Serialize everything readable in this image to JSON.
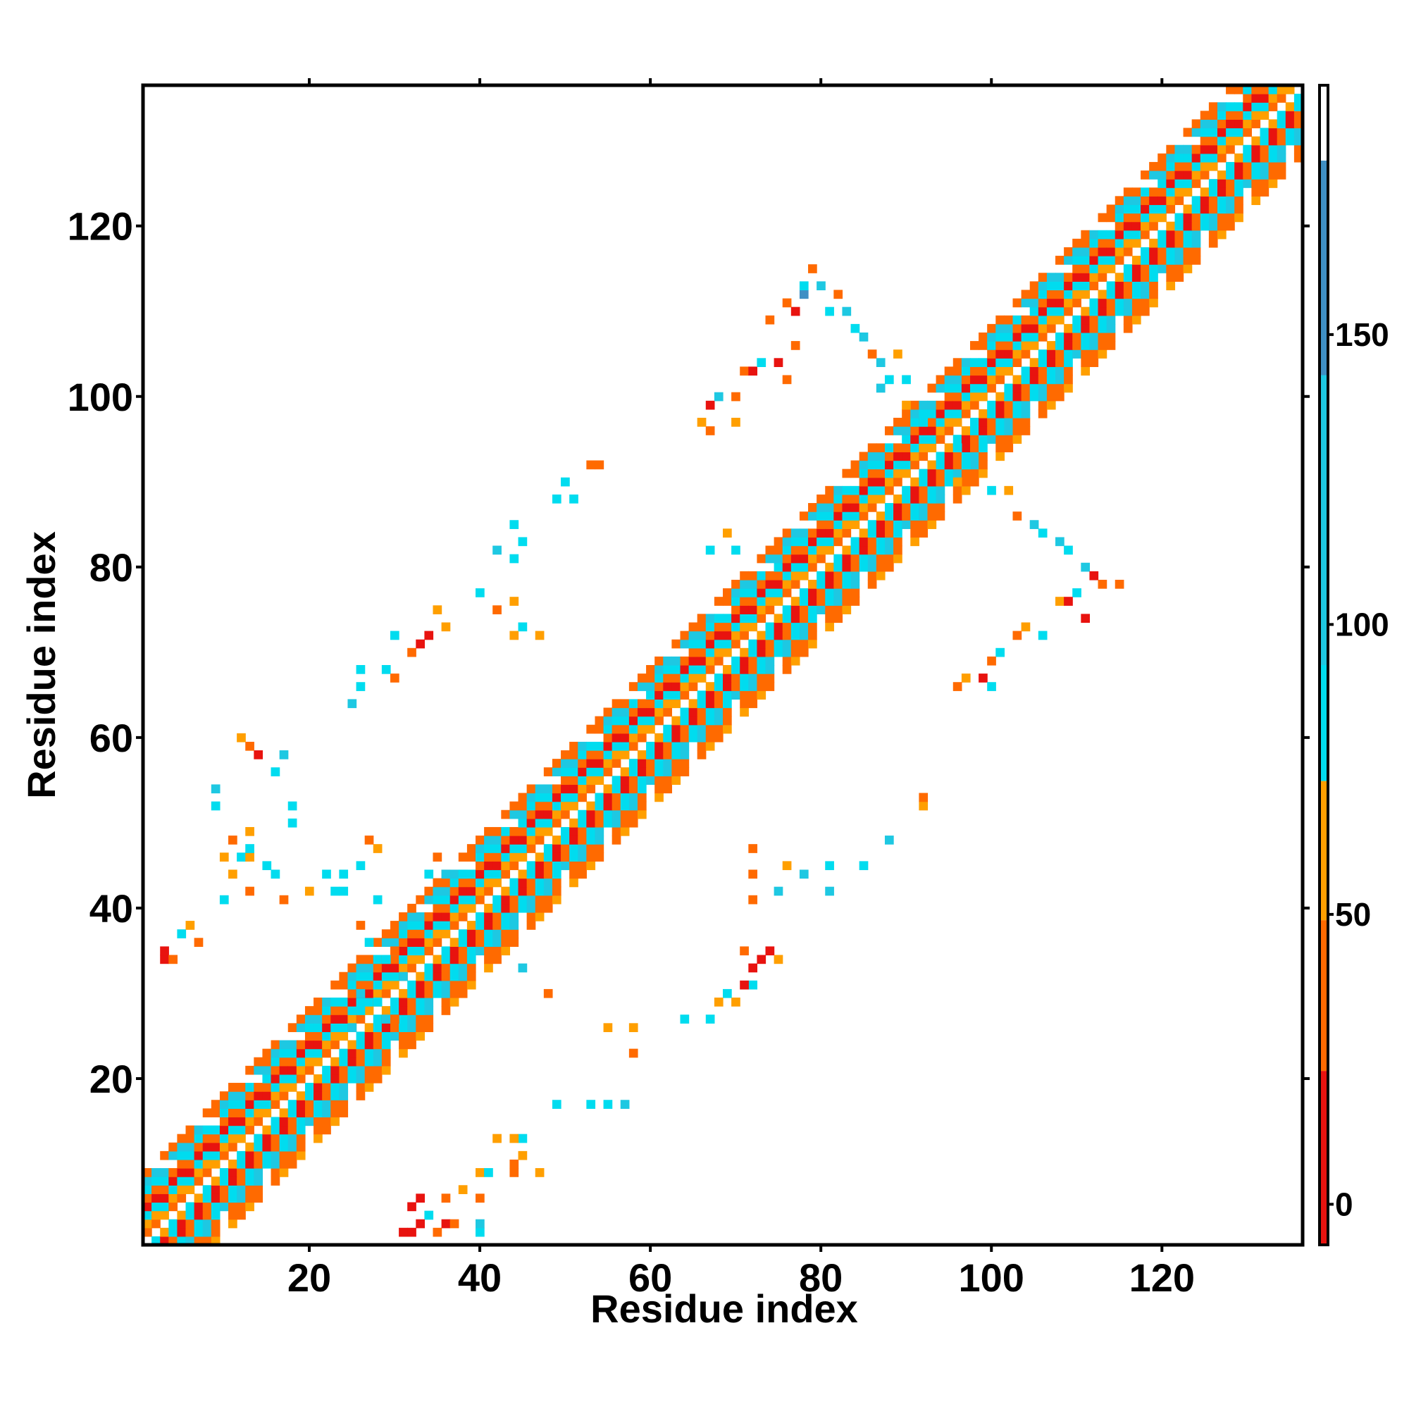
{
  "chart_data": {
    "type": "heatmap",
    "title": "",
    "xlabel": "Residue index",
    "ylabel": "Residue index",
    "xlim": [
      1,
      136
    ],
    "ylim": [
      1,
      136
    ],
    "xticks": [
      20,
      40,
      60,
      80,
      100,
      120
    ],
    "yticks": [
      20,
      40,
      60,
      80,
      100,
      120
    ],
    "tick_labels": {
      "x": [
        "20",
        "40",
        "60",
        "80",
        "100",
        "120"
      ],
      "y": [
        "20",
        "40",
        "60",
        "80",
        "100",
        "120"
      ]
    },
    "colorbar": {
      "range": [
        -7,
        193
      ],
      "ticks": [
        0,
        50,
        100,
        150
      ],
      "tick_labels": [
        "0",
        "50",
        "100",
        "150"
      ],
      "bins": [
        {
          "from": -7,
          "to": 23,
          "color": "#e8130f"
        },
        {
          "from": 23,
          "to": 49,
          "color": "#ff6a00"
        },
        {
          "from": 49,
          "to": 73,
          "color": "#ff9f00"
        },
        {
          "from": 73,
          "to": 93,
          "color": "#00dcef"
        },
        {
          "from": 93,
          "to": 143,
          "color": "#1ec8e2"
        },
        {
          "from": 143,
          "to": 180,
          "color": "#3f8fc4"
        },
        {
          "from": 180,
          "to": 193,
          "color": "#ffffff"
        }
      ]
    },
    "palette": {
      "red": "#e8130f",
      "orange": "#ff6a00",
      "amber": "#ff9f00",
      "cyan": "#00dcef",
      "teal": "#1ec8e2",
      "blue": "#3f8fc4"
    },
    "diagonal_band": {
      "residue_range": [
        1,
        136
      ],
      "half_width": 8,
      "pattern": [
        "orange",
        "amber",
        "cyan",
        "red",
        "orange",
        "cyan",
        "teal",
        "orange"
      ]
    },
    "off_diagonal_cells": [
      [
        31,
        2,
        "red"
      ],
      [
        32,
        2,
        "red"
      ],
      [
        35,
        2,
        "orange"
      ],
      [
        36,
        3,
        "red"
      ],
      [
        37,
        3,
        "orange"
      ],
      [
        40,
        2,
        "cyan"
      ],
      [
        40,
        3,
        "teal"
      ],
      [
        34,
        4,
        "cyan"
      ],
      [
        33,
        3,
        "red"
      ],
      [
        32,
        5,
        "red"
      ],
      [
        33,
        6,
        "red"
      ],
      [
        36,
        6,
        "orange"
      ],
      [
        40,
        6,
        "orange"
      ],
      [
        38,
        7,
        "amber"
      ],
      [
        29,
        27,
        "teal"
      ],
      [
        30,
        27,
        "orange"
      ],
      [
        28,
        29,
        "cyan"
      ],
      [
        26,
        28,
        "cyan"
      ],
      [
        25,
        26,
        "teal"
      ],
      [
        26,
        30,
        "teal"
      ],
      [
        28,
        31,
        "cyan"
      ],
      [
        36,
        44,
        "teal"
      ],
      [
        35,
        46,
        "orange"
      ],
      [
        34,
        44,
        "cyan"
      ],
      [
        32,
        40,
        "orange"
      ],
      [
        38,
        44,
        "cyan"
      ],
      [
        13,
        42,
        "orange"
      ],
      [
        11,
        44,
        "amber"
      ],
      [
        10,
        41,
        "cyan"
      ],
      [
        10,
        46,
        "amber"
      ],
      [
        12,
        46,
        "cyan"
      ],
      [
        13,
        46,
        "amber"
      ],
      [
        3,
        34,
        "red"
      ],
      [
        3,
        35,
        "red"
      ],
      [
        4,
        34,
        "orange"
      ],
      [
        5,
        37,
        "cyan"
      ],
      [
        7,
        36,
        "orange"
      ],
      [
        6,
        38,
        "amber"
      ],
      [
        31,
        32,
        "teal"
      ],
      [
        30,
        35,
        "orange"
      ],
      [
        29,
        34,
        "cyan"
      ],
      [
        27,
        36,
        "cyan"
      ],
      [
        26,
        38,
        "orange"
      ],
      [
        23,
        42,
        "cyan"
      ],
      [
        24,
        42,
        "cyan"
      ],
      [
        22,
        44,
        "cyan"
      ],
      [
        20,
        42,
        "amber"
      ],
      [
        17,
        41,
        "orange"
      ],
      [
        16,
        44,
        "cyan"
      ],
      [
        15,
        45,
        "cyan"
      ],
      [
        13,
        47,
        "cyan"
      ],
      [
        13,
        49,
        "amber"
      ],
      [
        11,
        48,
        "orange"
      ],
      [
        9,
        52,
        "cyan"
      ],
      [
        9,
        54,
        "teal"
      ],
      [
        14,
        58,
        "red"
      ],
      [
        13,
        59,
        "orange"
      ],
      [
        12,
        60,
        "amber"
      ],
      [
        18,
        50,
        "cyan"
      ],
      [
        18,
        52,
        "cyan"
      ],
      [
        16,
        56,
        "cyan"
      ],
      [
        17,
        58,
        "teal"
      ],
      [
        24,
        44,
        "cyan"
      ],
      [
        26,
        45,
        "cyan"
      ],
      [
        28,
        41,
        "cyan"
      ],
      [
        27,
        48,
        "orange"
      ],
      [
        28,
        47,
        "amber"
      ],
      [
        32,
        70,
        "orange"
      ],
      [
        33,
        71,
        "red"
      ],
      [
        34,
        72,
        "red"
      ],
      [
        35,
        75,
        "amber"
      ],
      [
        36,
        73,
        "amber"
      ],
      [
        30,
        72,
        "cyan"
      ],
      [
        30,
        67,
        "orange"
      ],
      [
        29,
        68,
        "cyan"
      ],
      [
        26,
        68,
        "cyan"
      ],
      [
        26,
        66,
        "cyan"
      ],
      [
        25,
        64,
        "teal"
      ],
      [
        40,
        77,
        "cyan"
      ],
      [
        42,
        75,
        "orange"
      ],
      [
        44,
        72,
        "amber"
      ],
      [
        45,
        73,
        "cyan"
      ],
      [
        47,
        72,
        "amber"
      ],
      [
        44,
        76,
        "amber"
      ],
      [
        44,
        81,
        "cyan"
      ],
      [
        45,
        83,
        "cyan"
      ],
      [
        49,
        88,
        "cyan"
      ],
      [
        50,
        90,
        "cyan"
      ],
      [
        51,
        88,
        "cyan"
      ],
      [
        53,
        92,
        "orange"
      ],
      [
        54,
        92,
        "orange"
      ],
      [
        42,
        82,
        "teal"
      ],
      [
        44,
        85,
        "cyan"
      ],
      [
        67,
        82,
        "cyan"
      ],
      [
        69,
        84,
        "amber"
      ],
      [
        70,
        82,
        "cyan"
      ],
      [
        67,
        96,
        "orange"
      ],
      [
        66,
        97,
        "amber"
      ],
      [
        67,
        99,
        "red"
      ],
      [
        68,
        100,
        "teal"
      ],
      [
        70,
        100,
        "orange"
      ],
      [
        70,
        97,
        "amber"
      ],
      [
        71,
        103,
        "orange"
      ],
      [
        72,
        103,
        "red"
      ],
      [
        73,
        104,
        "cyan"
      ],
      [
        75,
        104,
        "red"
      ],
      [
        76,
        102,
        "orange"
      ],
      [
        77,
        106,
        "orange"
      ],
      [
        74,
        109,
        "orange"
      ],
      [
        76,
        111,
        "orange"
      ],
      [
        77,
        110,
        "red"
      ],
      [
        78,
        112,
        "blue"
      ],
      [
        78,
        113,
        "cyan"
      ],
      [
        79,
        115,
        "orange"
      ],
      [
        80,
        113,
        "teal"
      ],
      [
        81,
        110,
        "cyan"
      ],
      [
        82,
        112,
        "orange"
      ],
      [
        83,
        110,
        "teal"
      ],
      [
        84,
        108,
        "cyan"
      ],
      [
        85,
        107,
        "teal"
      ],
      [
        86,
        105,
        "orange"
      ],
      [
        87,
        104,
        "teal"
      ],
      [
        88,
        102,
        "cyan"
      ],
      [
        89,
        105,
        "amber"
      ],
      [
        90,
        102,
        "cyan"
      ],
      [
        87,
        101,
        "teal"
      ],
      [
        90,
        99,
        "amber"
      ],
      [
        92,
        97,
        "cyan"
      ],
      [
        96,
        94,
        "cyan"
      ],
      [
        97,
        92,
        "cyan"
      ],
      [
        96,
        90,
        "amber"
      ],
      [
        100,
        89,
        "cyan"
      ],
      [
        102,
        89,
        "amber"
      ],
      [
        103,
        86,
        "orange"
      ],
      [
        105,
        85,
        "teal"
      ],
      [
        106,
        84,
        "cyan"
      ],
      [
        108,
        83,
        "teal"
      ],
      [
        109,
        82,
        "cyan"
      ],
      [
        111,
        80,
        "teal"
      ],
      [
        112,
        79,
        "red"
      ],
      [
        113,
        78,
        "orange"
      ],
      [
        115,
        78,
        "orange"
      ],
      [
        110,
        77,
        "cyan"
      ],
      [
        108,
        76,
        "amber"
      ],
      [
        109,
        76,
        "red"
      ],
      [
        111,
        74,
        "red"
      ],
      [
        106,
        72,
        "cyan"
      ],
      [
        104,
        73,
        "amber"
      ],
      [
        103,
        72,
        "orange"
      ],
      [
        101,
        70,
        "cyan"
      ],
      [
        100,
        69,
        "orange"
      ],
      [
        99,
        67,
        "red"
      ],
      [
        97,
        67,
        "amber"
      ],
      [
        96,
        66,
        "orange"
      ],
      [
        100,
        66,
        "cyan"
      ],
      [
        92,
        52,
        "amber"
      ],
      [
        92,
        53,
        "orange"
      ],
      [
        88,
        48,
        "teal"
      ],
      [
        85,
        45,
        "cyan"
      ],
      [
        81,
        45,
        "cyan"
      ],
      [
        81,
        42,
        "teal"
      ],
      [
        78,
        44,
        "teal"
      ],
      [
        76,
        45,
        "amber"
      ],
      [
        72,
        47,
        "orange"
      ],
      [
        72,
        44,
        "orange"
      ],
      [
        72,
        41,
        "orange"
      ],
      [
        75,
        42,
        "teal"
      ],
      [
        71,
        35,
        "orange"
      ],
      [
        72,
        33,
        "red"
      ],
      [
        73,
        34,
        "red"
      ],
      [
        74,
        35,
        "red"
      ],
      [
        75,
        34,
        "amber"
      ],
      [
        72,
        31,
        "cyan"
      ],
      [
        71,
        31,
        "red"
      ],
      [
        70,
        29,
        "amber"
      ],
      [
        69,
        30,
        "cyan"
      ],
      [
        68,
        29,
        "amber"
      ],
      [
        64,
        27,
        "cyan"
      ],
      [
        67,
        27,
        "cyan"
      ],
      [
        58,
        26,
        "amber"
      ],
      [
        58,
        23,
        "orange"
      ],
      [
        55,
        26,
        "amber"
      ],
      [
        53,
        17,
        "cyan"
      ],
      [
        55,
        17,
        "cyan"
      ],
      [
        57,
        17,
        "teal"
      ],
      [
        49,
        17,
        "cyan"
      ],
      [
        45,
        13,
        "cyan"
      ],
      [
        44,
        13,
        "amber"
      ],
      [
        42,
        13,
        "amber"
      ],
      [
        44,
        10,
        "orange"
      ],
      [
        40,
        9,
        "amber"
      ],
      [
        41,
        9,
        "cyan"
      ],
      [
        44,
        9,
        "orange"
      ],
      [
        47,
        9,
        "amber"
      ],
      [
        45,
        11,
        "amber"
      ],
      [
        48,
        30,
        "orange"
      ],
      [
        45,
        33,
        "teal"
      ]
    ]
  }
}
